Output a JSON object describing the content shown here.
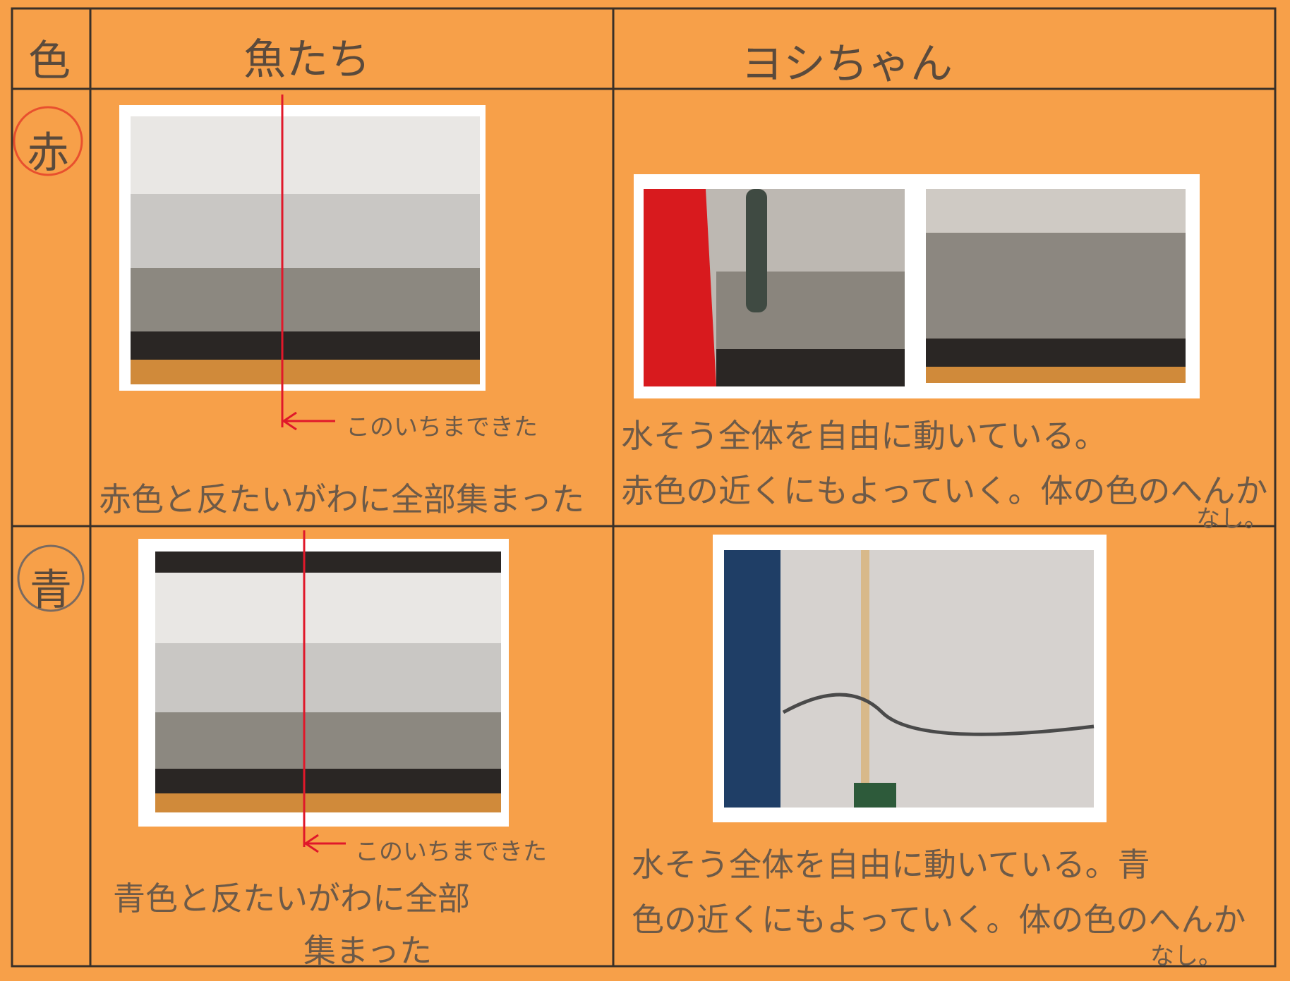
{
  "header": {
    "corner": "色",
    "fish": "魚たち",
    "yoshi": "ヨシちゃん"
  },
  "rows": [
    {
      "color": "赤",
      "fish_marker": "このいちまできた",
      "fish_note": [
        "赤色と反たいがわに全部集まった"
      ],
      "yoshi_note": [
        "水そう全体を自由に動いている。",
        "赤色の近くにもよっていく。体の色のへんか",
        "なし。"
      ]
    },
    {
      "color": "青",
      "fish_marker": "このいちまできた",
      "fish_note": [
        "青色と反たいがわに全部",
        "集まった"
      ],
      "yoshi_note": [
        "水そう全体を自由に動いている。青",
        "色の近くにもよっていく。体の色のへんか",
        "なし。"
      ]
    }
  ]
}
